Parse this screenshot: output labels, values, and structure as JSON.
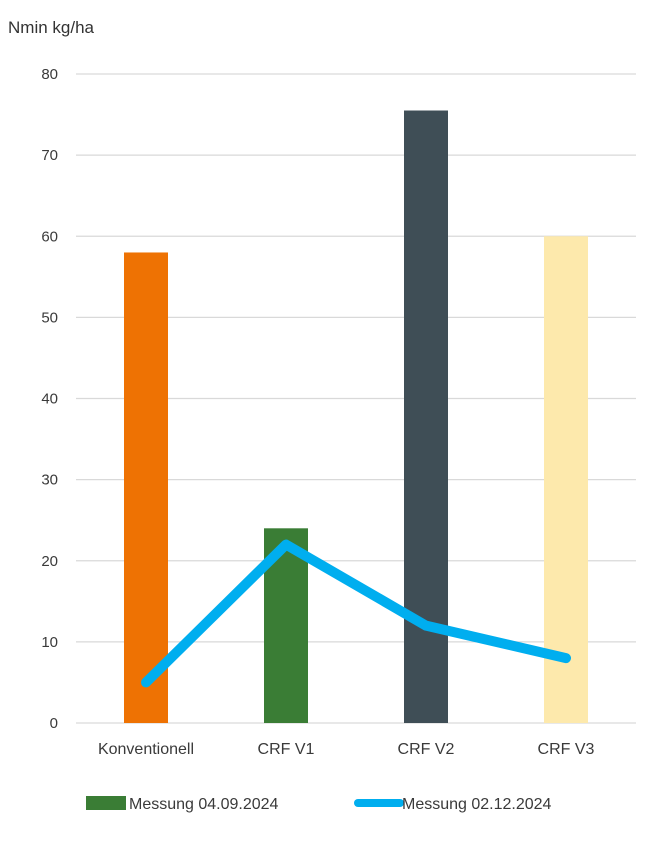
{
  "chart_data": {
    "type": "bar",
    "ylabel": "Nmin kg/ha",
    "xlabel": "",
    "ylim": [
      0,
      80
    ],
    "yticks": [
      0,
      10,
      20,
      30,
      40,
      50,
      60,
      70,
      80
    ],
    "categories": [
      "Konventionell",
      "CRF V1",
      "CRF V2",
      "CRF V3"
    ],
    "grid": true,
    "legend_position": "bottom",
    "series": [
      {
        "name": "Messung 04.09.2024",
        "type": "bar",
        "values": [
          58,
          24,
          75.5,
          60
        ],
        "bar_colors": [
          "#ee7203",
          "#3a7d35",
          "#3f4e56",
          "#fde9ac"
        ],
        "legend_color": "#3a7d35"
      },
      {
        "name": "Messung 02.12.2024",
        "type": "line",
        "values": [
          5,
          22,
          12,
          8
        ],
        "color": "#00aeef"
      }
    ]
  }
}
